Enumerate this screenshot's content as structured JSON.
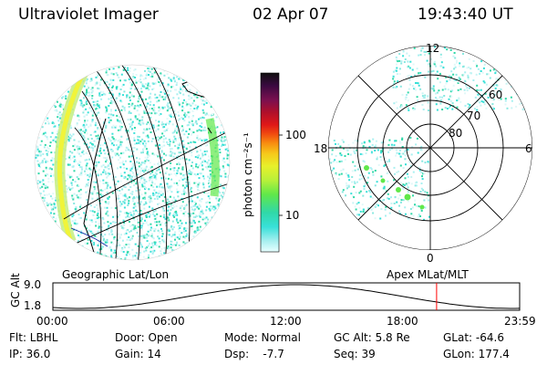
{
  "header": {
    "instrument": "Ultraviolet Imager",
    "date": "02 Apr 07",
    "time": "19:43:40 UT"
  },
  "colorbar": {
    "unit_label": "photon cm⁻²s⁻¹",
    "ticks": [
      "100",
      "10"
    ],
    "colors": [
      "#101010",
      "#3a0a40",
      "#7a1050",
      "#b0102a",
      "#e01818",
      "#f04a10",
      "#f88a10",
      "#f6c81a",
      "#e8f02a",
      "#b8f03a",
      "#60e84a",
      "#30d8a8",
      "#38e0d8",
      "#a8f0f0",
      "#e8ffff"
    ]
  },
  "map_left": {
    "caption": "Geographic Lat/Lon"
  },
  "map_right": {
    "caption": "Apex  MLat/MLT",
    "mlt_labels": {
      "top": "12",
      "left": "18",
      "right": "6",
      "bottom": "0"
    },
    "lat_labels": [
      "80",
      "70",
      "60"
    ]
  },
  "timeline": {
    "ylabel": "GC Alt",
    "ymax": "9.0",
    "ymin": "1.8",
    "ticks": [
      "00:00",
      "06:00",
      "12:00",
      "18:00",
      "23:59"
    ],
    "marker_time_hours": 19.73,
    "accent": "#ff0000"
  },
  "info_rows": [
    [
      "Flt: LBHL",
      "Door: Open",
      "Mode: Normal",
      "GC Alt: 5.8 Re",
      "GLat: -64.6"
    ],
    [
      "IP: 36.0",
      "Gain: 14",
      "Dsp:    -7.7",
      "Seq: 39",
      "GLon: 177.4"
    ]
  ]
}
